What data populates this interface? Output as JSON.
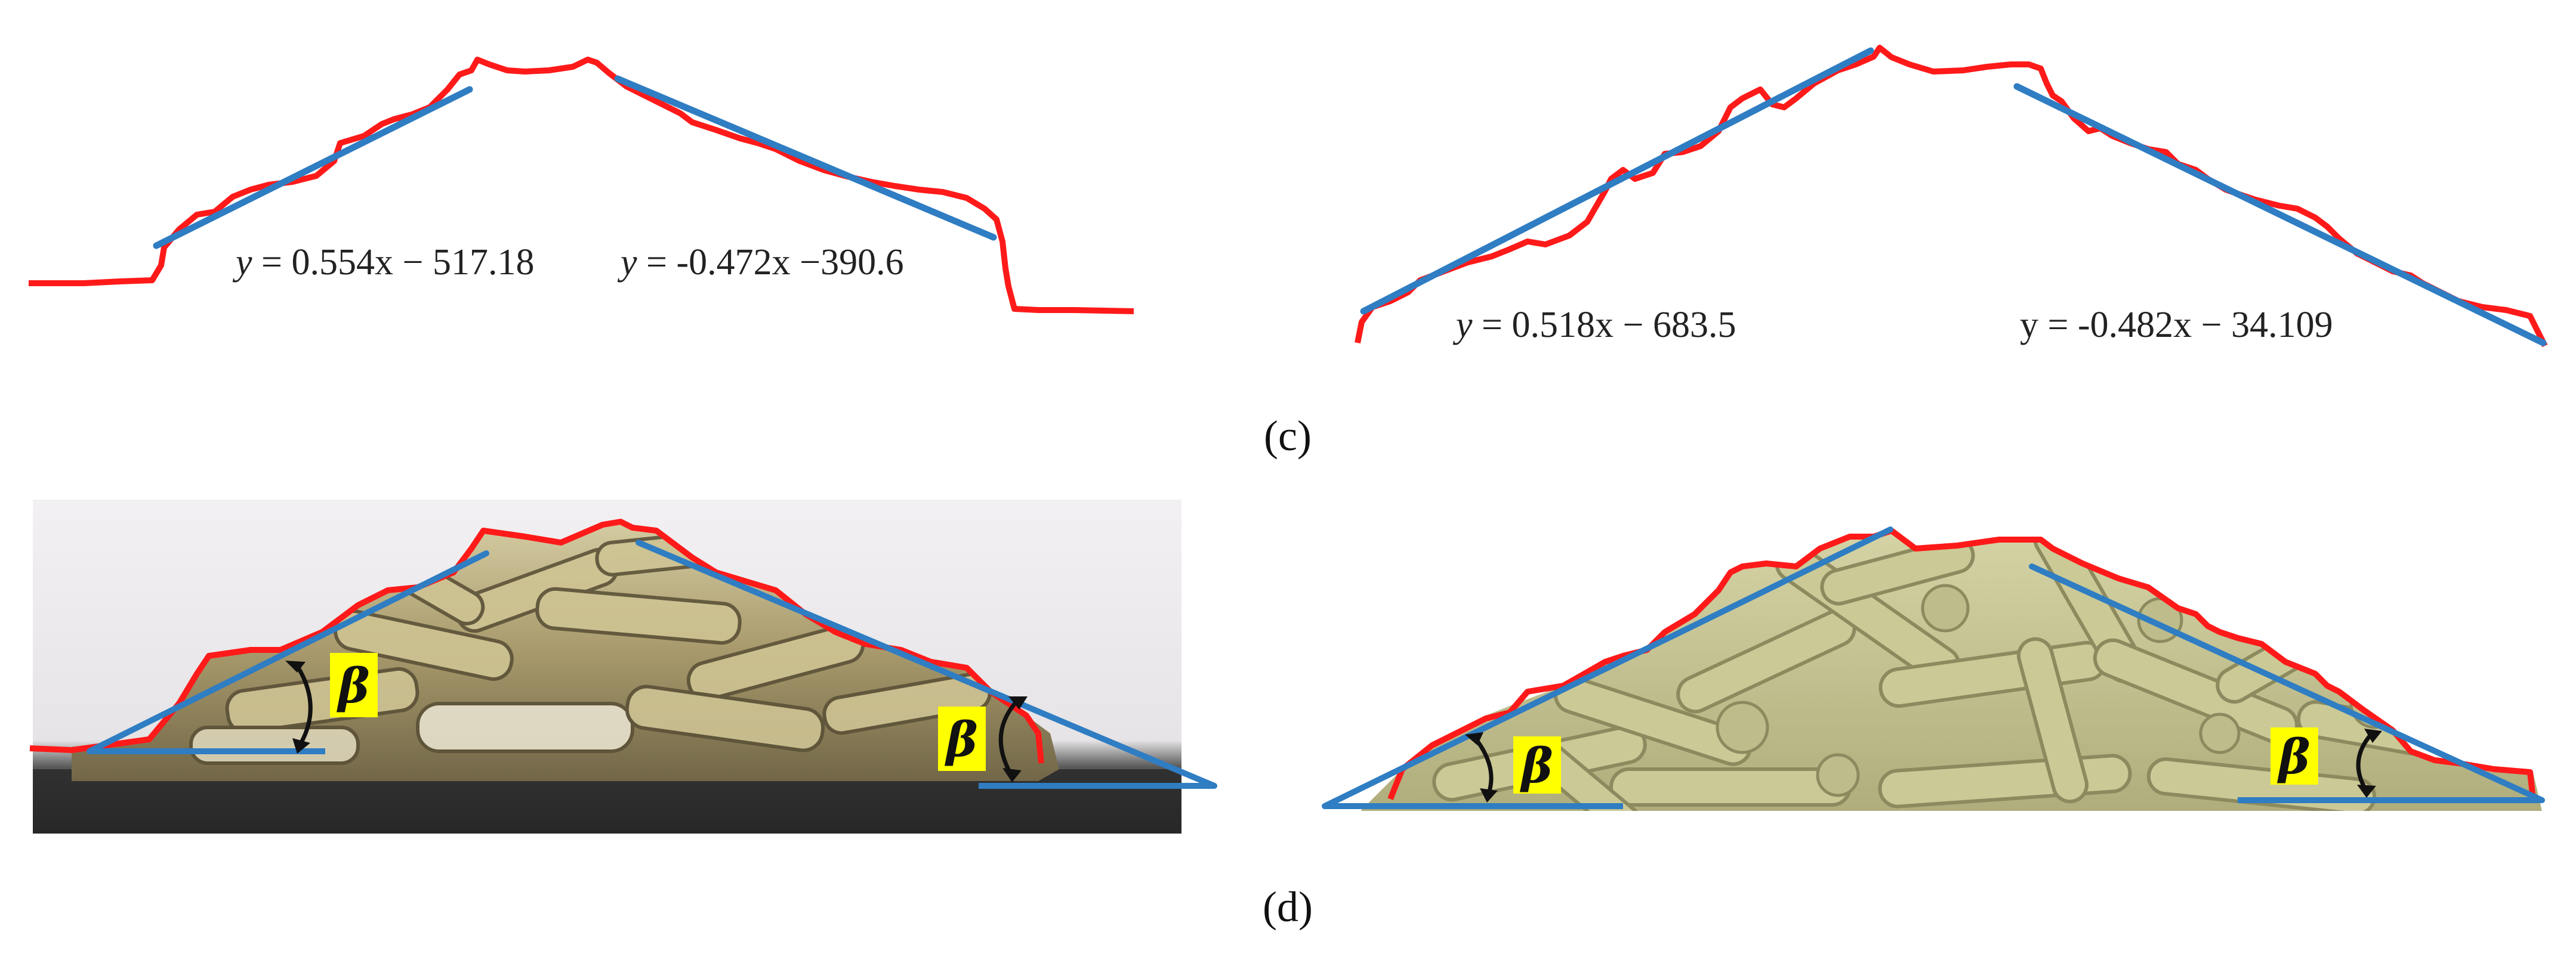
{
  "panels": {
    "c": {
      "label": "(c)"
    },
    "d": {
      "label": "(d)"
    }
  },
  "equations": {
    "left_rising": {
      "lead": "y",
      "rest": " = 0.554x − 517.18"
    },
    "left_falling": {
      "lead": "y",
      "rest": " = -0.472x −390.6"
    },
    "right_rising": {
      "lead": "y",
      "rest": " = 0.518x − 683.5"
    },
    "right_falling": {
      "lead": "y",
      "rest": " = -0.482x − 34.109"
    }
  },
  "angle_symbol": "β",
  "colors": {
    "profile": "#ff1a1a",
    "fit_line": "#2f7dc2",
    "beta_box": "#ffff00",
    "sim_fill": "#c2c08e",
    "sim_shadow": "#8c8a5e",
    "photo_ground": "#2a2a2a",
    "photo_stalk": "#b7a77c"
  }
}
